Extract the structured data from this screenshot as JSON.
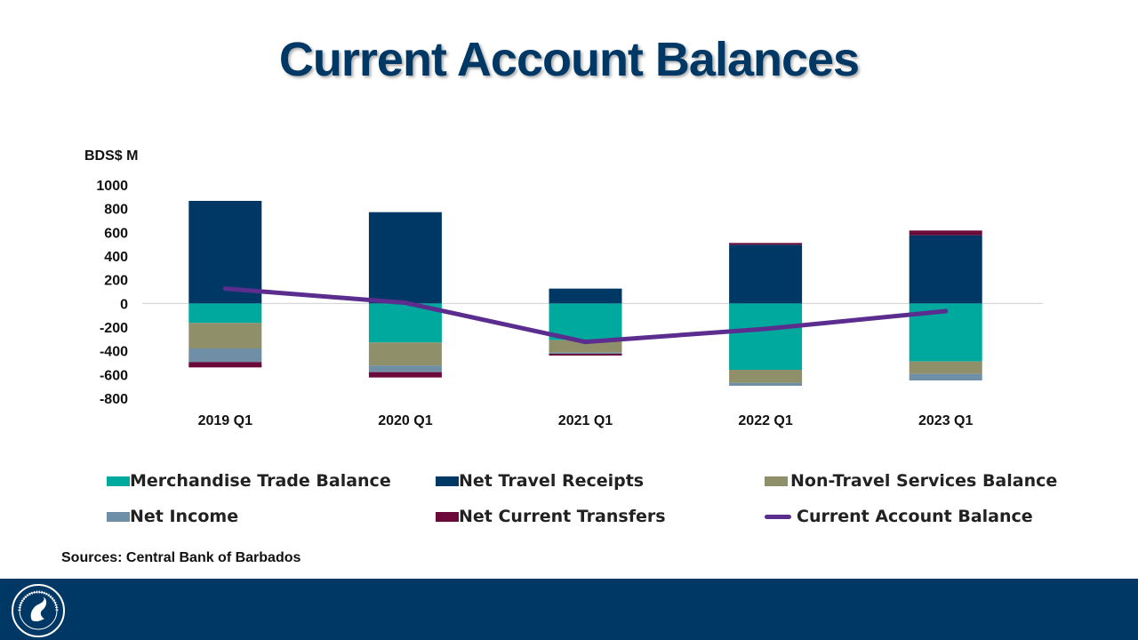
{
  "title": "Current Account Balances",
  "sources": "Sources: Central Bank of Barbados",
  "chart_data": {
    "type": "bar",
    "stacked": true,
    "ylabel": "BDS$ M",
    "ylim": [
      -800,
      1000
    ],
    "yticks": [
      1000,
      800,
      600,
      400,
      200,
      0,
      -200,
      -400,
      -600,
      -800
    ],
    "categories": [
      "2019 Q1",
      "2020 Q1",
      "2021 Q1",
      "2022 Q1",
      "2023 Q1"
    ],
    "series": [
      {
        "name": "Merchandise Trade Balance",
        "kind": "bar",
        "color": "#00A99D",
        "values": [
          -165,
          -330,
          -310,
          -560,
          -490
        ]
      },
      {
        "name": "Net Travel Receipts",
        "kind": "bar",
        "color": "#003865",
        "values": [
          865,
          770,
          125,
          495,
          575
        ]
      },
      {
        "name": "Non-Travel Services Balance",
        "kind": "bar",
        "color": "#8F8F6A",
        "values": [
          -215,
          -195,
          -105,
          -110,
          -105
        ]
      },
      {
        "name": "Net Income",
        "kind": "bar",
        "color": "#6E8FA6",
        "values": [
          -115,
          -55,
          -10,
          -25,
          -55
        ]
      },
      {
        "name": "Net Current Transfers",
        "kind": "bar",
        "color": "#6B0A3A",
        "values": [
          -45,
          -45,
          -15,
          15,
          40
        ]
      },
      {
        "name": "Current Account Balance",
        "kind": "line",
        "color": "#5B2D8E",
        "values": [
          125,
          5,
          -325,
          -215,
          -65
        ]
      }
    ]
  },
  "legend": [
    {
      "label": "Merchandise Trade Balance",
      "color": "#00A99D",
      "type": "box"
    },
    {
      "label": "Net Travel Receipts",
      "color": "#003865",
      "type": "box"
    },
    {
      "label": "Non-Travel Services Balance",
      "color": "#8F8F6A",
      "type": "box"
    },
    {
      "label": "Net Income",
      "color": "#6E8FA6",
      "type": "box"
    },
    {
      "label": "Net Current Transfers",
      "color": "#6B0A3A",
      "type": "box"
    },
    {
      "label": "Current Account Balance",
      "color": "#5B2D8E",
      "type": "line"
    }
  ]
}
